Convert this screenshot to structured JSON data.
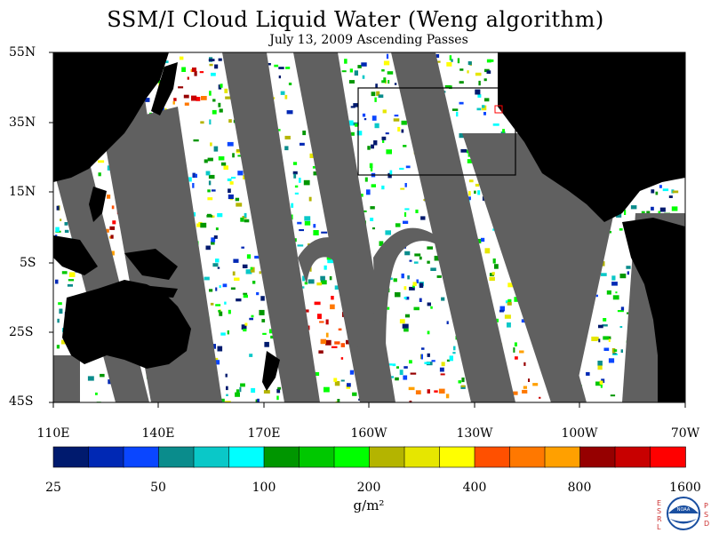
{
  "title": "SSM/I Cloud Liquid Water (Weng algorithm)",
  "subtitle": "July 13, 2009  Ascending Passes",
  "lat_labels": [
    "55N",
    "35N",
    "15N",
    "5S",
    "25S",
    "45S"
  ],
  "lon_labels": [
    "110E",
    "140E",
    "170E",
    "160W",
    "130W",
    "100W",
    "70W"
  ],
  "colorbar": {
    "labels": [
      "25",
      "50",
      "100",
      "200",
      "400",
      "800",
      "1600"
    ],
    "units": "g/m²",
    "colors": [
      "#001a6e",
      "#0028b4",
      "#0a46ff",
      "#0a8c8c",
      "#0ac8c8",
      "#00ffff",
      "#009600",
      "#00c800",
      "#00ff00",
      "#b4b400",
      "#e6e600",
      "#ffff00",
      "#ff5000",
      "#ff7800",
      "#ffa000",
      "#960000",
      "#c80000",
      "#ff0000"
    ]
  },
  "logo": {
    "left_letters": [
      "E",
      "S",
      "R",
      "L"
    ],
    "right_letters": [
      "P",
      "S",
      "D"
    ],
    "center_text": "NOAA"
  },
  "map_colors": {
    "ocean": "#ffffff",
    "land": "#000000",
    "no_data": "#606060",
    "box": "#000000"
  }
}
